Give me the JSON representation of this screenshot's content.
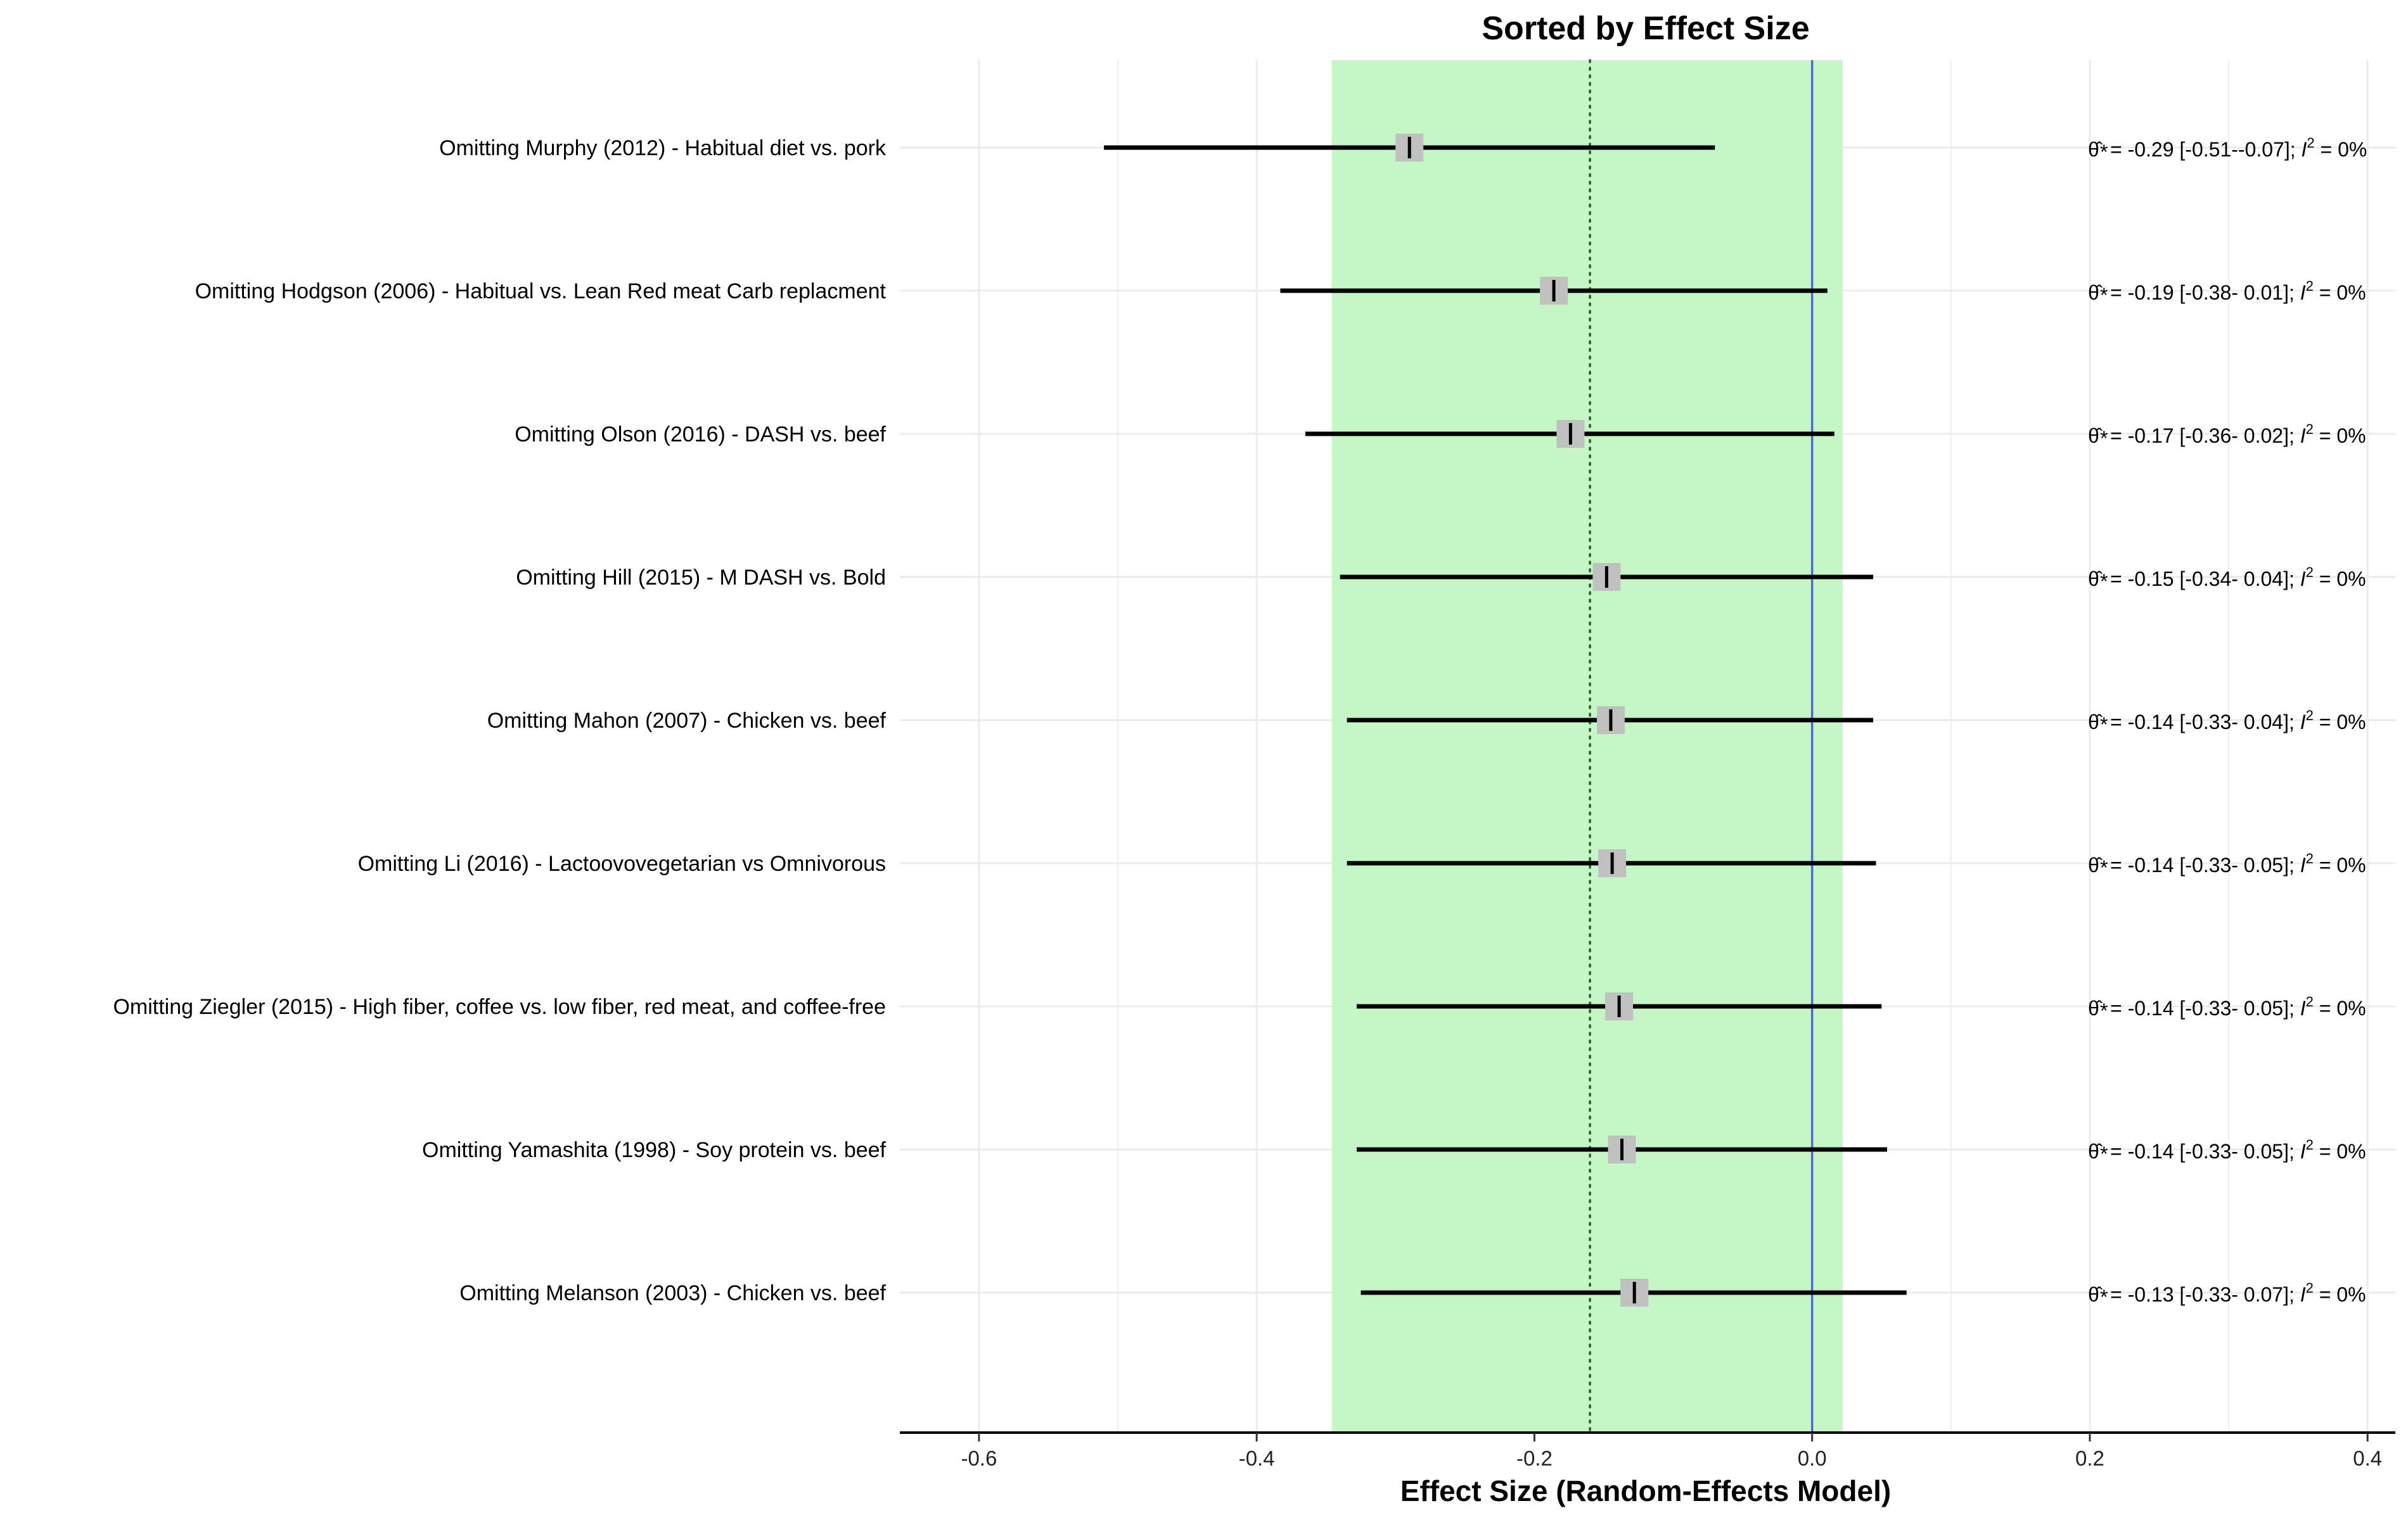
{
  "chart_data": {
    "type": "forest",
    "title": "Sorted by Effect Size",
    "xlabel": "Effect Size (Random-Effects Model)",
    "xlim": [
      -0.657,
      0.42
    ],
    "xticks": [
      -0.6,
      -0.4,
      -0.2,
      0.0,
      0.2,
      0.4
    ],
    "xtick_labels": [
      "-0.6",
      "-0.4",
      "-0.2",
      "0.0",
      "0.2",
      "0.4"
    ],
    "grid": true,
    "pooled_estimate": -0.16,
    "pooled_ci": [
      -0.346,
      0.022
    ],
    "reference_line": 0.0,
    "colors": {
      "ci_band": "#c5f7c5",
      "reference_line": "#5566cc",
      "point_box": "#c0c0c0",
      "ci_line": "#000000",
      "grid": "#ebebeb"
    },
    "studies": [
      {
        "label": "Omitting Murphy (2012) - Habitual diet vs. pork",
        "estimate": -0.29,
        "lower": -0.51,
        "upper": -0.07,
        "annotation": "= -0.29 [-0.51--0.07]; ",
        "i2": "= 0%"
      },
      {
        "label": "Omitting Hodgson (2006) - Habitual vs. Lean Red meat Carb replacment",
        "estimate": -0.186,
        "lower": -0.383,
        "upper": 0.011,
        "annotation": "= -0.19 [-0.38- 0.01]; ",
        "i2": "= 0%"
      },
      {
        "label": "Omitting Olson (2016) - DASH vs. beef",
        "estimate": -0.174,
        "lower": -0.365,
        "upper": 0.016,
        "annotation": "= -0.17 [-0.36- 0.02]; ",
        "i2": "= 0%"
      },
      {
        "label": "Omitting Hill (2015) - M DASH vs. Bold",
        "estimate": -0.148,
        "lower": -0.34,
        "upper": 0.044,
        "annotation": "= -0.15 [-0.34- 0.04]; ",
        "i2": "= 0%"
      },
      {
        "label": "Omitting Mahon (2007) - Chicken vs. beef",
        "estimate": -0.145,
        "lower": -0.335,
        "upper": 0.044,
        "annotation": "= -0.14 [-0.33- 0.04]; ",
        "i2": "= 0%"
      },
      {
        "label": "Omitting Li (2016) - Lactoovovegetarian vs Omnivorous",
        "estimate": -0.144,
        "lower": -0.335,
        "upper": 0.046,
        "annotation": "= -0.14 [-0.33- 0.05]; ",
        "i2": "= 0%"
      },
      {
        "label": "Omitting Ziegler (2015) - High fiber, coffee vs. low fiber, red meat, and coffee-free",
        "estimate": -0.139,
        "lower": -0.328,
        "upper": 0.05,
        "annotation": "= -0.14 [-0.33- 0.05]; ",
        "i2": "= 0%"
      },
      {
        "label": "Omitting Yamashita (1998) - Soy protein vs. beef",
        "estimate": -0.137,
        "lower": -0.328,
        "upper": 0.054,
        "annotation": "= -0.14 [-0.33- 0.05]; ",
        "i2": "= 0%"
      },
      {
        "label": "Omitting Melanson (2003) - Chicken vs. beef",
        "estimate": -0.128,
        "lower": -0.325,
        "upper": 0.068,
        "annotation": "= -0.13 [-0.33- 0.07]; ",
        "i2": "= 0%"
      }
    ]
  }
}
